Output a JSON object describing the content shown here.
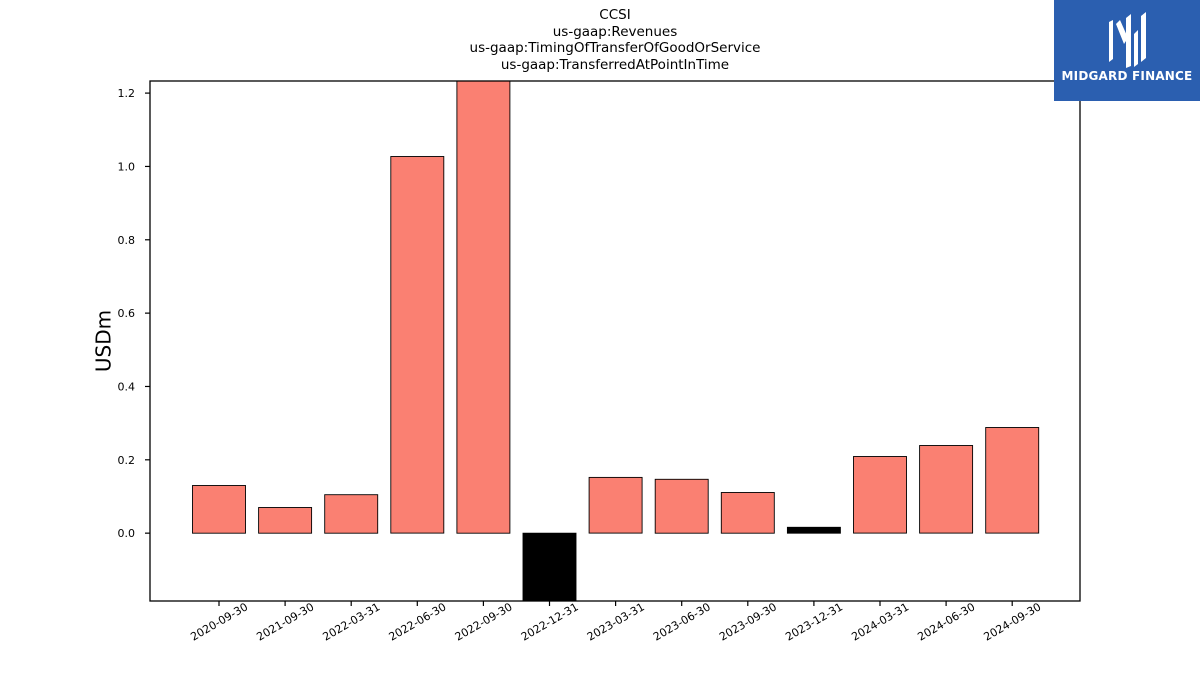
{
  "title_lines": [
    "CCSI",
    "us-gaap:Revenues",
    "us-gaap:TimingOfTransferOfGoodOrService",
    "us-gaap:TransferredAtPointInTime"
  ],
  "logo": {
    "text": "MIDGARD FINANCE",
    "icon": "midgard-logo-icon",
    "background": "#2b5fb0"
  },
  "chart_data": {
    "type": "bar",
    "title": "CCSI\nus-gaap:Revenues\nus-gaap:TimingOfTransferOfGoodOrService\nus-gaap:TransferredAtPointInTime",
    "xlabel": "",
    "ylabel": "USDm",
    "categories": [
      "2020-09-30",
      "2021-09-30",
      "2022-03-31",
      "2022-06-30",
      "2022-09-30",
      "2022-12-31",
      "2023-03-31",
      "2023-06-30",
      "2023-09-30",
      "2023-12-31",
      "2024-03-31",
      "2024-06-30",
      "2024-09-30"
    ],
    "values": [
      0.13,
      0.07,
      0.105,
      1.027,
      1.235,
      -0.185,
      0.152,
      0.147,
      0.111,
      0.016,
      0.209,
      0.239,
      0.288
    ],
    "bar_colors": [
      "#fa8072",
      "#fa8072",
      "#fa8072",
      "#fa8072",
      "#fa8072",
      "#000000",
      "#fa8072",
      "#fa8072",
      "#fa8072",
      "#000000",
      "#fa8072",
      "#fa8072",
      "#fa8072"
    ],
    "ylim": [
      -0.185,
      1.233
    ],
    "yticks": [
      0.0,
      0.2,
      0.4,
      0.6,
      0.8,
      1.0,
      1.2
    ],
    "ytick_labels": [
      "0.0",
      "0.2",
      "0.4",
      "0.6",
      "0.8",
      "1.0",
      "1.2"
    ],
    "grid": false,
    "legend": "none"
  }
}
